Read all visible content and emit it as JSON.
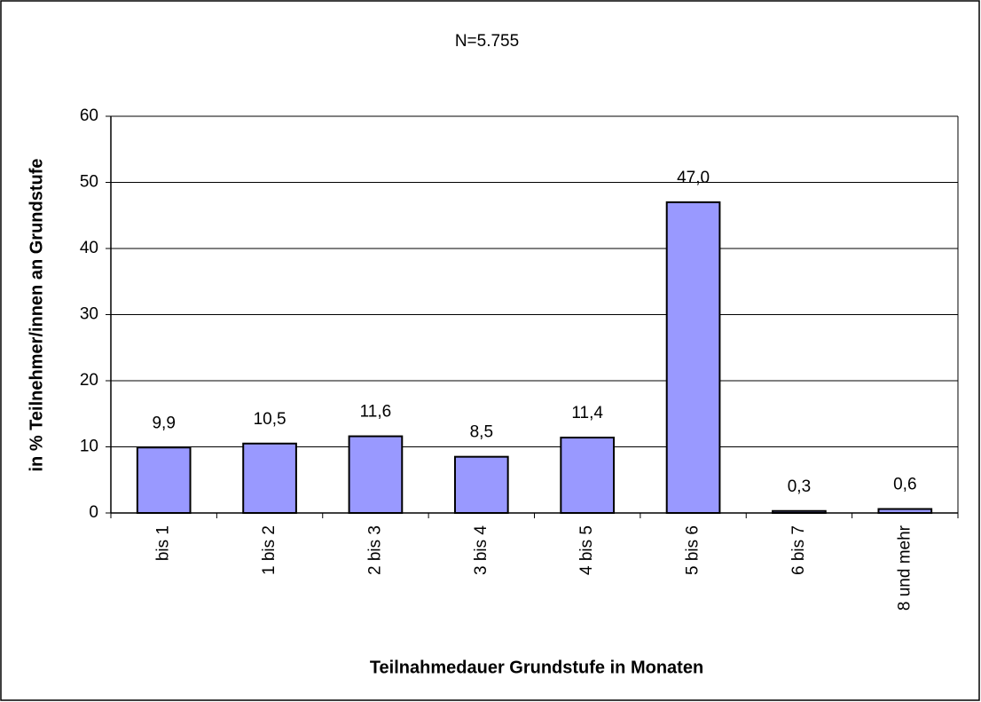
{
  "chart_data": {
    "type": "bar",
    "title": "N=5.755",
    "x_label": "Teilnahmedauer Grundstufe in Monaten",
    "y_label": "in % Teilnehmer/innen an Grundstufe",
    "categories": [
      "bis 1",
      "1 bis 2",
      "2 bis 3",
      "3 bis 4",
      "4 bis 5",
      "5 bis 6",
      "6 bis 7",
      "8  und mehr"
    ],
    "values": [
      9.9,
      10.5,
      11.6,
      8.5,
      11.4,
      47.0,
      0.3,
      0.6
    ],
    "value_labels": [
      "9,9",
      "10,5",
      "11,6",
      "8,5",
      "11,4",
      "47,0",
      "0,3",
      "0,6"
    ],
    "color": "#9999ff",
    "ylim": [
      0,
      60
    ],
    "yticks": [
      0,
      10,
      20,
      30,
      40,
      50,
      60
    ],
    "grid": true
  }
}
